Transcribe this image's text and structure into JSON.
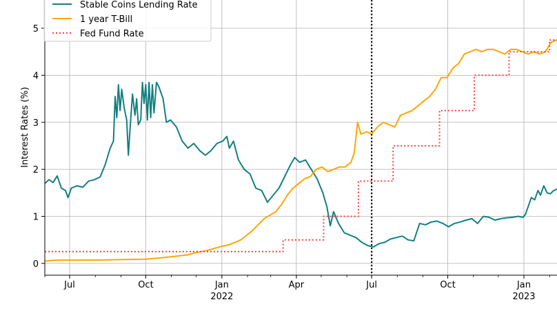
{
  "chart_data": {
    "type": "line",
    "ylabel": "Interest Rates (%)",
    "xlim": [
      "2021-06-01",
      "2023-02-10"
    ],
    "ylim": [
      -0.25,
      5.6
    ],
    "grid": true,
    "legend_position": "top-left",
    "y_ticks": [
      0,
      1,
      2,
      3,
      4,
      5
    ],
    "x_ticks": [
      {
        "date": "2021-07-01",
        "label": "Jul",
        "year": ""
      },
      {
        "date": "2021-10-01",
        "label": "Oct",
        "year": ""
      },
      {
        "date": "2022-01-01",
        "label": "Jan",
        "year": "2022"
      },
      {
        "date": "2022-04-01",
        "label": "Apr",
        "year": ""
      },
      {
        "date": "2022-07-01",
        "label": "Jul",
        "year": ""
      },
      {
        "date": "2022-10-01",
        "label": "Oct",
        "year": ""
      },
      {
        "date": "2023-01-01",
        "label": "Jan",
        "year": "2023"
      }
    ],
    "vline": {
      "date": "2022-07-01",
      "style": "dotted",
      "color": "#000000"
    },
    "series": [
      {
        "name": "Stable Coins Lending Rate",
        "color": "#127f7f",
        "style": "solid",
        "points": [
          [
            "2021-06-01",
            1.7
          ],
          [
            "2021-06-06",
            1.78
          ],
          [
            "2021-06-11",
            1.72
          ],
          [
            "2021-06-16",
            1.86
          ],
          [
            "2021-06-21",
            1.6
          ],
          [
            "2021-06-26",
            1.55
          ],
          [
            "2021-06-29",
            1.4
          ],
          [
            "2021-07-03",
            1.6
          ],
          [
            "2021-07-10",
            1.65
          ],
          [
            "2021-07-17",
            1.62
          ],
          [
            "2021-07-24",
            1.75
          ],
          [
            "2021-07-31",
            1.78
          ],
          [
            "2021-08-07",
            1.84
          ],
          [
            "2021-08-13",
            2.1
          ],
          [
            "2021-08-19",
            2.45
          ],
          [
            "2021-08-23",
            2.6
          ],
          [
            "2021-08-25",
            3.55
          ],
          [
            "2021-08-27",
            3.1
          ],
          [
            "2021-08-29",
            3.8
          ],
          [
            "2021-08-31",
            3.25
          ],
          [
            "2021-09-02",
            3.7
          ],
          [
            "2021-09-05",
            3.3
          ],
          [
            "2021-09-08",
            3.05
          ],
          [
            "2021-09-10",
            2.3
          ],
          [
            "2021-09-12",
            2.85
          ],
          [
            "2021-09-15",
            3.6
          ],
          [
            "2021-09-18",
            3.15
          ],
          [
            "2021-09-20",
            3.5
          ],
          [
            "2021-09-22",
            2.95
          ],
          [
            "2021-09-25",
            3.05
          ],
          [
            "2021-09-27",
            3.85
          ],
          [
            "2021-09-29",
            3.4
          ],
          [
            "2021-10-01",
            3.8
          ],
          [
            "2021-10-03",
            3.05
          ],
          [
            "2021-10-05",
            3.85
          ],
          [
            "2021-10-07",
            3.1
          ],
          [
            "2021-10-09",
            3.8
          ],
          [
            "2021-10-11",
            3.2
          ],
          [
            "2021-10-14",
            3.85
          ],
          [
            "2021-10-17",
            3.75
          ],
          [
            "2021-10-22",
            3.5
          ],
          [
            "2021-10-26",
            3.0
          ],
          [
            "2021-10-31",
            3.05
          ],
          [
            "2021-11-07",
            2.9
          ],
          [
            "2021-11-14",
            2.6
          ],
          [
            "2021-11-21",
            2.45
          ],
          [
            "2021-11-28",
            2.55
          ],
          [
            "2021-12-05",
            2.4
          ],
          [
            "2021-12-12",
            2.3
          ],
          [
            "2021-12-19",
            2.4
          ],
          [
            "2021-12-26",
            2.55
          ],
          [
            "2022-01-02",
            2.6
          ],
          [
            "2022-01-07",
            2.7
          ],
          [
            "2022-01-10",
            2.45
          ],
          [
            "2022-01-15",
            2.6
          ],
          [
            "2022-01-21",
            2.2
          ],
          [
            "2022-01-28",
            2.0
          ],
          [
            "2022-02-04",
            1.9
          ],
          [
            "2022-02-11",
            1.6
          ],
          [
            "2022-02-18",
            1.55
          ],
          [
            "2022-02-25",
            1.3
          ],
          [
            "2022-03-04",
            1.45
          ],
          [
            "2022-03-11",
            1.6
          ],
          [
            "2022-03-18",
            1.85
          ],
          [
            "2022-03-25",
            2.1
          ],
          [
            "2022-03-30",
            2.25
          ],
          [
            "2022-04-05",
            2.15
          ],
          [
            "2022-04-12",
            2.2
          ],
          [
            "2022-04-19",
            2.0
          ],
          [
            "2022-04-26",
            1.8
          ],
          [
            "2022-05-03",
            1.5
          ],
          [
            "2022-05-08",
            1.2
          ],
          [
            "2022-05-12",
            0.8
          ],
          [
            "2022-05-16",
            1.1
          ],
          [
            "2022-05-22",
            0.85
          ],
          [
            "2022-05-29",
            0.65
          ],
          [
            "2022-06-05",
            0.6
          ],
          [
            "2022-06-12",
            0.55
          ],
          [
            "2022-06-19",
            0.45
          ],
          [
            "2022-06-26",
            0.38
          ],
          [
            "2022-07-03",
            0.35
          ],
          [
            "2022-07-10",
            0.42
          ],
          [
            "2022-07-17",
            0.45
          ],
          [
            "2022-07-24",
            0.52
          ],
          [
            "2022-07-31",
            0.55
          ],
          [
            "2022-08-07",
            0.58
          ],
          [
            "2022-08-14",
            0.5
          ],
          [
            "2022-08-21",
            0.48
          ],
          [
            "2022-08-28",
            0.85
          ],
          [
            "2022-09-04",
            0.82
          ],
          [
            "2022-09-11",
            0.88
          ],
          [
            "2022-09-18",
            0.9
          ],
          [
            "2022-09-25",
            0.85
          ],
          [
            "2022-10-02",
            0.78
          ],
          [
            "2022-10-09",
            0.85
          ],
          [
            "2022-10-16",
            0.88
          ],
          [
            "2022-10-23",
            0.92
          ],
          [
            "2022-10-30",
            0.95
          ],
          [
            "2022-11-06",
            0.85
          ],
          [
            "2022-11-13",
            1.0
          ],
          [
            "2022-11-20",
            0.98
          ],
          [
            "2022-11-27",
            0.92
          ],
          [
            "2022-12-04",
            0.95
          ],
          [
            "2022-12-11",
            0.97
          ],
          [
            "2022-12-18",
            0.98
          ],
          [
            "2022-12-25",
            1.0
          ],
          [
            "2022-12-31",
            0.98
          ],
          [
            "2023-01-03",
            1.05
          ],
          [
            "2023-01-07",
            1.25
          ],
          [
            "2023-01-10",
            1.4
          ],
          [
            "2023-01-14",
            1.35
          ],
          [
            "2023-01-18",
            1.55
          ],
          [
            "2023-01-21",
            1.45
          ],
          [
            "2023-01-25",
            1.65
          ],
          [
            "2023-01-29",
            1.5
          ],
          [
            "2023-02-02",
            1.48
          ],
          [
            "2023-02-06",
            1.55
          ],
          [
            "2023-02-10",
            1.58
          ]
        ]
      },
      {
        "name": "1 year T-Bill",
        "color": "#ffa500",
        "style": "solid",
        "points": [
          [
            "2021-06-01",
            0.05
          ],
          [
            "2021-06-15",
            0.07
          ],
          [
            "2021-07-01",
            0.07
          ],
          [
            "2021-08-01",
            0.07
          ],
          [
            "2021-09-01",
            0.08
          ],
          [
            "2021-10-01",
            0.09
          ],
          [
            "2021-10-20",
            0.12
          ],
          [
            "2021-11-05",
            0.15
          ],
          [
            "2021-11-20",
            0.18
          ],
          [
            "2021-12-01",
            0.23
          ],
          [
            "2021-12-15",
            0.28
          ],
          [
            "2021-12-31",
            0.36
          ],
          [
            "2022-01-10",
            0.4
          ],
          [
            "2022-01-24",
            0.5
          ],
          [
            "2022-02-07",
            0.7
          ],
          [
            "2022-02-21",
            0.95
          ],
          [
            "2022-03-07",
            1.1
          ],
          [
            "2022-03-14",
            1.25
          ],
          [
            "2022-03-21",
            1.45
          ],
          [
            "2022-03-28",
            1.6
          ],
          [
            "2022-04-04",
            1.7
          ],
          [
            "2022-04-11",
            1.8
          ],
          [
            "2022-04-18",
            1.85
          ],
          [
            "2022-04-25",
            2.0
          ],
          [
            "2022-05-02",
            2.05
          ],
          [
            "2022-05-09",
            1.95
          ],
          [
            "2022-05-16",
            2.0
          ],
          [
            "2022-05-23",
            2.05
          ],
          [
            "2022-05-30",
            2.05
          ],
          [
            "2022-06-06",
            2.15
          ],
          [
            "2022-06-10",
            2.35
          ],
          [
            "2022-06-14",
            3.0
          ],
          [
            "2022-06-18",
            2.75
          ],
          [
            "2022-06-25",
            2.8
          ],
          [
            "2022-07-01",
            2.75
          ],
          [
            "2022-07-08",
            2.9
          ],
          [
            "2022-07-15",
            3.0
          ],
          [
            "2022-07-22",
            2.95
          ],
          [
            "2022-07-29",
            2.9
          ],
          [
            "2022-08-05",
            3.15
          ],
          [
            "2022-08-12",
            3.2
          ],
          [
            "2022-08-19",
            3.25
          ],
          [
            "2022-08-26",
            3.35
          ],
          [
            "2022-09-02",
            3.45
          ],
          [
            "2022-09-09",
            3.55
          ],
          [
            "2022-09-16",
            3.7
          ],
          [
            "2022-09-23",
            3.95
          ],
          [
            "2022-09-30",
            3.95
          ],
          [
            "2022-10-07",
            4.15
          ],
          [
            "2022-10-14",
            4.25
          ],
          [
            "2022-10-21",
            4.45
          ],
          [
            "2022-10-28",
            4.5
          ],
          [
            "2022-11-04",
            4.55
          ],
          [
            "2022-11-11",
            4.5
          ],
          [
            "2022-11-18",
            4.55
          ],
          [
            "2022-11-25",
            4.55
          ],
          [
            "2022-12-02",
            4.5
          ],
          [
            "2022-12-09",
            4.45
          ],
          [
            "2022-12-16",
            4.55
          ],
          [
            "2022-12-23",
            4.55
          ],
          [
            "2022-12-30",
            4.5
          ],
          [
            "2023-01-06",
            4.45
          ],
          [
            "2023-01-13",
            4.5
          ],
          [
            "2023-01-20",
            4.45
          ],
          [
            "2023-01-27",
            4.5
          ],
          [
            "2023-02-03",
            4.7
          ],
          [
            "2023-02-10",
            4.75
          ]
        ]
      },
      {
        "name": "Fed Fund Rate",
        "color": "#ff3d3d",
        "style": "dotted",
        "points": [
          [
            "2021-06-01",
            0.25
          ],
          [
            "2022-03-16",
            0.25
          ],
          [
            "2022-03-16",
            0.5
          ],
          [
            "2022-05-04",
            0.5
          ],
          [
            "2022-05-04",
            1.0
          ],
          [
            "2022-06-15",
            1.0
          ],
          [
            "2022-06-15",
            1.75
          ],
          [
            "2022-07-27",
            1.75
          ],
          [
            "2022-07-27",
            2.5
          ],
          [
            "2022-09-21",
            2.5
          ],
          [
            "2022-09-21",
            3.25
          ],
          [
            "2022-11-02",
            3.25
          ],
          [
            "2022-11-02",
            4.0
          ],
          [
            "2022-12-14",
            4.0
          ],
          [
            "2022-12-14",
            4.5
          ],
          [
            "2023-02-01",
            4.5
          ],
          [
            "2023-02-01",
            4.75
          ],
          [
            "2023-02-10",
            4.75
          ]
        ]
      }
    ]
  }
}
